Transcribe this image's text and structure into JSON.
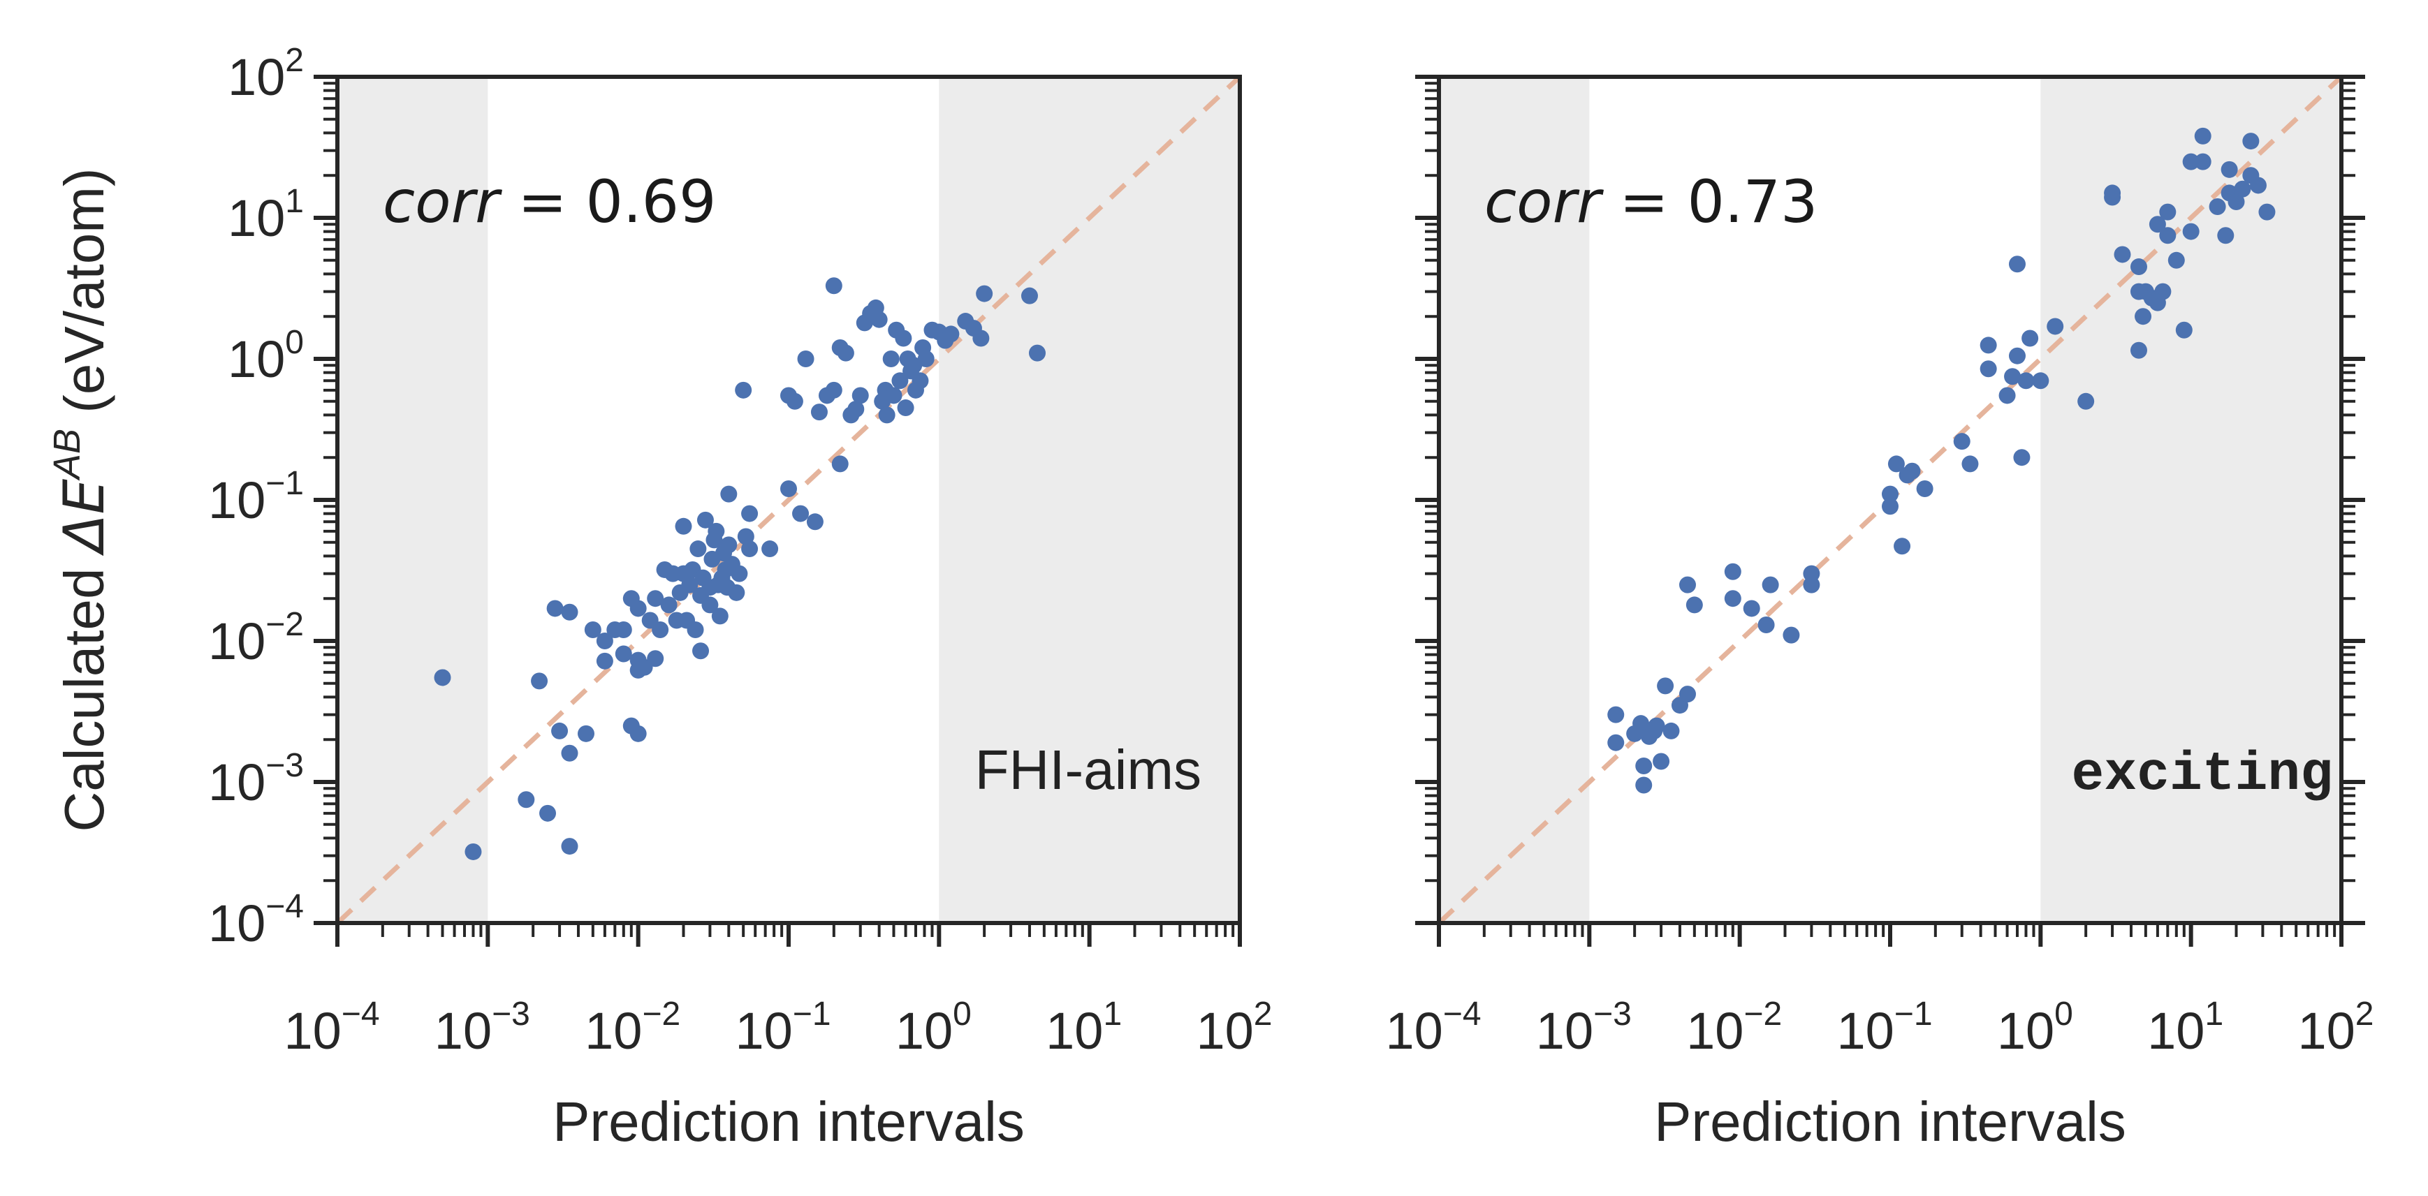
{
  "chart_data": [
    {
      "type": "scatter",
      "panel": "left",
      "xlabel": "Prediction intervals",
      "ylabel_prefix": "Calculated ",
      "ylabel_delta": "ΔE",
      "ylabel_sup": "AB",
      "ylabel_suffix": " (eV/atom)",
      "xscale": "log",
      "yscale": "log",
      "xlim": [
        0.0001,
        100
      ],
      "ylim": [
        0.0001,
        100
      ],
      "shaded_x_ranges": [
        [
          0.0001,
          0.001
        ],
        [
          1,
          100
        ]
      ],
      "reference_line": "y = x",
      "corr_label": "corr",
      "corr_value": "= 0.69",
      "code_label": "FHI-aims",
      "points": [
        [
          0.0005,
          0.0055
        ],
        [
          0.0008,
          0.00032
        ],
        [
          0.0018,
          0.00075
        ],
        [
          0.0022,
          0.0052
        ],
        [
          0.0025,
          0.0006
        ],
        [
          0.0028,
          0.017
        ],
        [
          0.003,
          0.0023
        ],
        [
          0.0035,
          0.0016
        ],
        [
          0.0035,
          0.016
        ],
        [
          0.0035,
          0.00035
        ],
        [
          0.0045,
          0.0022
        ],
        [
          0.005,
          0.012
        ],
        [
          0.006,
          0.0072
        ],
        [
          0.006,
          0.01
        ],
        [
          0.007,
          0.012
        ],
        [
          0.008,
          0.0081
        ],
        [
          0.008,
          0.012
        ],
        [
          0.009,
          0.02
        ],
        [
          0.009,
          0.0025
        ],
        [
          0.01,
          0.0022
        ],
        [
          0.01,
          0.017
        ],
        [
          0.01,
          0.0073
        ],
        [
          0.01,
          0.0062
        ],
        [
          0.011,
          0.0065
        ],
        [
          0.012,
          0.014
        ],
        [
          0.013,
          0.0075
        ],
        [
          0.013,
          0.02
        ],
        [
          0.014,
          0.012
        ],
        [
          0.015,
          0.032
        ],
        [
          0.016,
          0.018
        ],
        [
          0.017,
          0.03
        ],
        [
          0.018,
          0.014
        ],
        [
          0.019,
          0.022
        ],
        [
          0.02,
          0.03
        ],
        [
          0.02,
          0.065
        ],
        [
          0.021,
          0.014
        ],
        [
          0.022,
          0.025
        ],
        [
          0.023,
          0.032
        ],
        [
          0.024,
          0.012
        ],
        [
          0.025,
          0.045
        ],
        [
          0.026,
          0.0085
        ],
        [
          0.026,
          0.021
        ],
        [
          0.027,
          0.028
        ],
        [
          0.028,
          0.072
        ],
        [
          0.03,
          0.018
        ],
        [
          0.03,
          0.024
        ],
        [
          0.031,
          0.038
        ],
        [
          0.032,
          0.052
        ],
        [
          0.033,
          0.06
        ],
        [
          0.034,
          0.025
        ],
        [
          0.035,
          0.015
        ],
        [
          0.036,
          0.028
        ],
        [
          0.037,
          0.042
        ],
        [
          0.038,
          0.032
        ],
        [
          0.039,
          0.024
        ],
        [
          0.04,
          0.048
        ],
        [
          0.04,
          0.11
        ],
        [
          0.042,
          0.035
        ],
        [
          0.045,
          0.022
        ],
        [
          0.047,
          0.03
        ],
        [
          0.05,
          0.6
        ],
        [
          0.052,
          0.055
        ],
        [
          0.055,
          0.08
        ],
        [
          0.055,
          0.045
        ],
        [
          0.075,
          0.045
        ],
        [
          0.1,
          0.55
        ],
        [
          0.1,
          0.12
        ],
        [
          0.11,
          0.5
        ],
        [
          0.12,
          0.08
        ],
        [
          0.13,
          1.0
        ],
        [
          0.15,
          0.07
        ],
        [
          0.16,
          0.42
        ],
        [
          0.18,
          0.55
        ],
        [
          0.2,
          0.6
        ],
        [
          0.2,
          3.3
        ],
        [
          0.22,
          1.2
        ],
        [
          0.22,
          0.18
        ],
        [
          0.24,
          1.1
        ],
        [
          0.26,
          0.4
        ],
        [
          0.28,
          0.44
        ],
        [
          0.3,
          0.55
        ],
        [
          0.32,
          1.8
        ],
        [
          0.35,
          2.1
        ],
        [
          0.38,
          2.3
        ],
        [
          0.4,
          1.9
        ],
        [
          0.42,
          0.5
        ],
        [
          0.44,
          0.6
        ],
        [
          0.45,
          0.4
        ],
        [
          0.48,
          1.0
        ],
        [
          0.5,
          0.55
        ],
        [
          0.52,
          1.6
        ],
        [
          0.55,
          0.7
        ],
        [
          0.58,
          1.4
        ],
        [
          0.6,
          0.45
        ],
        [
          0.62,
          1.0
        ],
        [
          0.65,
          0.82
        ],
        [
          0.68,
          0.9
        ],
        [
          0.7,
          0.6
        ],
        [
          0.75,
          0.7
        ],
        [
          0.78,
          1.2
        ],
        [
          0.82,
          1.0
        ],
        [
          0.9,
          1.6
        ],
        [
          1.0,
          1.55
        ],
        [
          1.1,
          1.35
        ],
        [
          1.2,
          1.5
        ],
        [
          1.5,
          1.85
        ],
        [
          1.7,
          1.65
        ],
        [
          1.9,
          1.4
        ],
        [
          2.0,
          2.9
        ],
        [
          4.0,
          2.8
        ],
        [
          4.5,
          1.1
        ]
      ]
    },
    {
      "type": "scatter",
      "panel": "right",
      "xlabel": "Prediction intervals",
      "xscale": "log",
      "yscale": "log",
      "xlim": [
        0.0001,
        100
      ],
      "ylim": [
        0.0001,
        100
      ],
      "shaded_x_ranges": [
        [
          0.0001,
          0.001
        ],
        [
          1,
          100
        ]
      ],
      "reference_line": "y = x",
      "corr_label": "corr",
      "corr_value": "= 0.73",
      "code_label": "exciting",
      "points": [
        [
          0.0015,
          0.003
        ],
        [
          0.0015,
          0.0019
        ],
        [
          0.002,
          0.0022
        ],
        [
          0.0022,
          0.0026
        ],
        [
          0.0023,
          0.0013
        ],
        [
          0.0023,
          0.00095
        ],
        [
          0.0025,
          0.0021
        ],
        [
          0.0027,
          0.0023
        ],
        [
          0.0028,
          0.0025
        ],
        [
          0.003,
          0.0014
        ],
        [
          0.0032,
          0.0048
        ],
        [
          0.0035,
          0.0023
        ],
        [
          0.004,
          0.0035
        ],
        [
          0.0045,
          0.0042
        ],
        [
          0.0045,
          0.025
        ],
        [
          0.005,
          0.018
        ],
        [
          0.009,
          0.031
        ],
        [
          0.009,
          0.02
        ],
        [
          0.012,
          0.017
        ],
        [
          0.015,
          0.013
        ],
        [
          0.016,
          0.025
        ],
        [
          0.022,
          0.011
        ],
        [
          0.03,
          0.03
        ],
        [
          0.03,
          0.025
        ],
        [
          0.1,
          0.11
        ],
        [
          0.1,
          0.09
        ],
        [
          0.11,
          0.18
        ],
        [
          0.12,
          0.047
        ],
        [
          0.13,
          0.15
        ],
        [
          0.14,
          0.16
        ],
        [
          0.17,
          0.12
        ],
        [
          0.3,
          0.26
        ],
        [
          0.34,
          0.18
        ],
        [
          0.45,
          1.25
        ],
        [
          0.45,
          0.85
        ],
        [
          0.6,
          0.55
        ],
        [
          0.65,
          0.75
        ],
        [
          0.7,
          1.05
        ],
        [
          0.7,
          4.7
        ],
        [
          0.75,
          0.2
        ],
        [
          0.8,
          0.7
        ],
        [
          0.85,
          1.4
        ],
        [
          1.0,
          0.7
        ],
        [
          1.25,
          1.7
        ],
        [
          2.0,
          0.5
        ],
        [
          3.0,
          14.0
        ],
        [
          3.0,
          15.0
        ],
        [
          3.5,
          5.5
        ],
        [
          4.5,
          4.5
        ],
        [
          4.5,
          3.0
        ],
        [
          4.5,
          1.15
        ],
        [
          4.8,
          2.0
        ],
        [
          5.0,
          3.0
        ],
        [
          5.5,
          2.7
        ],
        [
          6.0,
          2.5
        ],
        [
          6.0,
          9.0
        ],
        [
          6.5,
          3.0
        ],
        [
          7.0,
          11.0
        ],
        [
          7.0,
          7.5
        ],
        [
          8.0,
          5.0
        ],
        [
          9.0,
          1.6
        ],
        [
          10.0,
          8.0
        ],
        [
          10.0,
          25.0
        ],
        [
          12.0,
          25.0
        ],
        [
          12.0,
          38.0
        ],
        [
          15.0,
          12.0
        ],
        [
          17.0,
          7.5
        ],
        [
          18.0,
          15.0
        ],
        [
          18.0,
          22.0
        ],
        [
          20.0,
          13.0
        ],
        [
          22.0,
          16.0
        ],
        [
          25.0,
          20.0
        ],
        [
          25.0,
          35.0
        ],
        [
          28.0,
          17.0
        ],
        [
          32.0,
          11.0
        ]
      ]
    }
  ],
  "axis_ticks": {
    "base": "10",
    "x_exponents": [
      "−4",
      "−3",
      "−2",
      "−1",
      "0",
      "1",
      "2"
    ],
    "y_exponents": [
      "−4",
      "−3",
      "−2",
      "−1",
      "0",
      "1",
      "2"
    ]
  },
  "colors": {
    "points": "#4c72b0",
    "diagonal": "#e5b49c",
    "shade": "#ececec",
    "axes": "#262626"
  }
}
